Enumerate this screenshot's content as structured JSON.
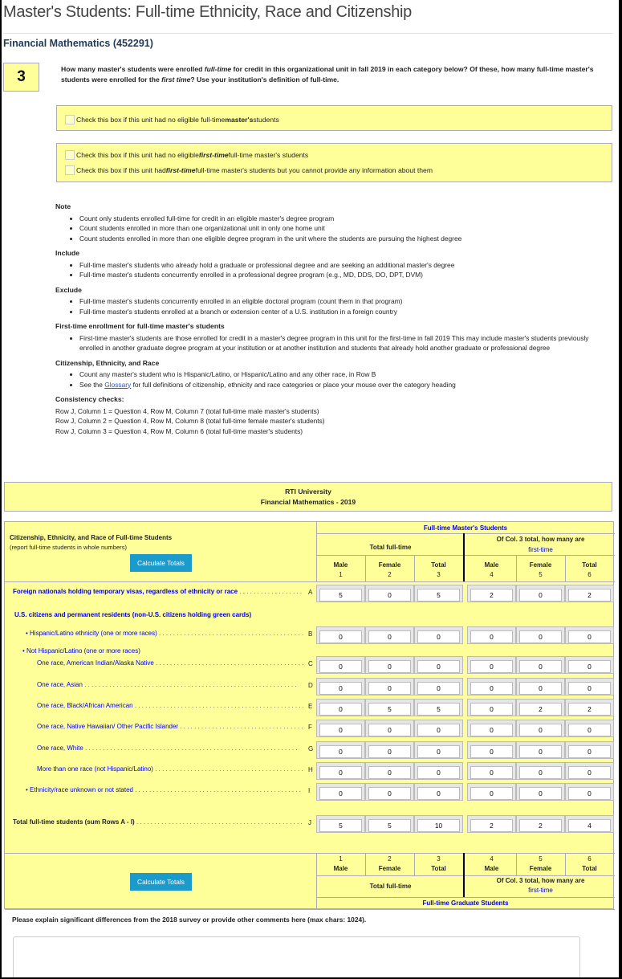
{
  "page": {
    "title": "Master's Students: Full-time Ethnicity, Race and Citizenship",
    "unit": "Financial Mathematics (452291)"
  },
  "question": {
    "number": "3",
    "text_a": "How many master's students were enrolled ",
    "em1": "full-time",
    "text_b": " for credit in this organizational unit in fall 2019 in each category below? Of these, how many full-time master's students were enrolled for the ",
    "em2": "first time",
    "text_c": "? Use your institution's definition of full-time."
  },
  "checkboxes": [
    {
      "pre": "Check this box if this unit had no eligible full-time ",
      "bold": "master's",
      "post": " students",
      "checked": false
    },
    {
      "pre": "Check this box if this unit had no eligible ",
      "bold": "first-time",
      "post": " full-time master's students",
      "checked": false
    },
    {
      "pre": "Check this box if this unit had ",
      "bold": "first-time",
      "post": " full-time master's students but you cannot provide any information about them",
      "checked": false
    }
  ],
  "notes": {
    "note_h": "Note",
    "note": [
      "Count only students enrolled full-time for credit in an eligible master's degree program",
      "Count students enrolled in more than one organizational unit in only one home unit",
      "Count students enrolled in more than one eligible degree program in the unit where the students are pursuing the highest degree"
    ],
    "include_h": "Include",
    "include": [
      "Full-time master's students who already hold a graduate or professional degree and are seeking an additional master's degree",
      "Full-time master's students concurrently enrolled in a professional degree program (e.g., MD, DDS, DO, DPT, DVM)"
    ],
    "exclude_h": "Exclude",
    "exclude": [
      "Full-time master's students concurrently enrolled in an eligible doctoral program (count them in that program)",
      "Full-time master's students enrolled at a branch or extension center of a U.S. institution in a foreign country"
    ],
    "firsttime_h": "First-time enrollment for full-time master's students",
    "firsttime": [
      "First-time master's students are those enrolled for credit in a master's degree program in this unit for the first-time in fall 2019 This may include master's students previously enrolled in another graduate degree program at your institution or at another institution and students that already hold another graduate or professional degree"
    ],
    "citizen_h": "Citizenship, Ethnicity, and Race",
    "citizen1": "Count any master's student who is Hispanic/Latino, or Hispanic/Latino and any other race, in Row B",
    "citizen2_pre": "See the ",
    "citizen2_link": "Glossary",
    "citizen2_post": " for full definitions of citizenship, ethnicity and race categories or place your mouse over the category heading",
    "consistency_h": "Consistency checks:",
    "consistency": [
      "Row J, Column 1 = Question 4, Row M, Column 7 (total full-time male master's students)",
      "Row J, Column 2 = Question 4, Row M, Column 8 (total full-time female master's students)",
      "Row J, Column 3 = Question 4, Row M, Column 6 (total full-time master's students)"
    ]
  },
  "header": {
    "institution": "RTI University",
    "program": "Financial Mathematics - 2019"
  },
  "table": {
    "left_title": "Citizenship, Ethnicity, and Race of Full-time Students",
    "left_sub": "(report full-time students in whole numbers)",
    "calc_label": "Calculate Totals",
    "top_group": "Full-time Master's Students",
    "bottom_group": "Full-time Graduate Students",
    "total_ft": "Total full-time",
    "of_col": "Of Col. 3 total, how many are",
    "first_time": "first-time",
    "cols": [
      {
        "label": "Male",
        "num": "1"
      },
      {
        "label": "Female",
        "num": "2"
      },
      {
        "label": "Total",
        "num": "3"
      },
      {
        "label": "Male",
        "num": "4"
      },
      {
        "label": "Female",
        "num": "5"
      },
      {
        "label": "Total",
        "num": "6"
      }
    ],
    "us_header": "U.S. citizens and permanent residents (non-U.S. citizens holding green cards)",
    "not_hisp": "Not Hispanic/Latino (one or more races)",
    "rows": [
      {
        "label": "Foreign nationals holding temporary visas, regardless of ethnicity or race",
        "letter": "A",
        "values": [
          "5",
          "0",
          "5",
          "2",
          "0",
          "2"
        ]
      },
      {
        "label": "Hispanic/Latino ethnicity (one or more races)",
        "letter": "B",
        "values": [
          "0",
          "0",
          "0",
          "0",
          "0",
          "0"
        ]
      },
      {
        "label": "One race, American Indian/Alaska Native",
        "letter": "C",
        "values": [
          "0",
          "0",
          "0",
          "0",
          "0",
          "0"
        ]
      },
      {
        "label": "One race, Asian",
        "letter": "D",
        "values": [
          "0",
          "0",
          "0",
          "0",
          "0",
          "0"
        ]
      },
      {
        "label": "One race, Black/African American",
        "letter": "E",
        "values": [
          "0",
          "5",
          "5",
          "0",
          "2",
          "2"
        ]
      },
      {
        "label": "One race, Native Hawaiian/ Other Pacific Islander",
        "letter": "F",
        "values": [
          "0",
          "0",
          "0",
          "0",
          "0",
          "0"
        ]
      },
      {
        "label": "One race, White",
        "letter": "G",
        "values": [
          "0",
          "0",
          "0",
          "0",
          "0",
          "0"
        ]
      },
      {
        "label": "More than one race (not Hispanic/Latino)",
        "letter": "H",
        "values": [
          "0",
          "0",
          "0",
          "0",
          "0",
          "0"
        ]
      },
      {
        "label": "Ethnicity/race unknown or not stated",
        "letter": "I",
        "values": [
          "0",
          "0",
          "0",
          "0",
          "0",
          "0"
        ]
      },
      {
        "label": "Total full-time students (sum Rows A - I)",
        "letter": "J",
        "values": [
          "5",
          "5",
          "10",
          "2",
          "2",
          "4"
        ]
      }
    ]
  },
  "comment": {
    "label": "Please explain significant differences from the 2018 survey or provide other comments here (max chars: 1024).",
    "value": ""
  }
}
